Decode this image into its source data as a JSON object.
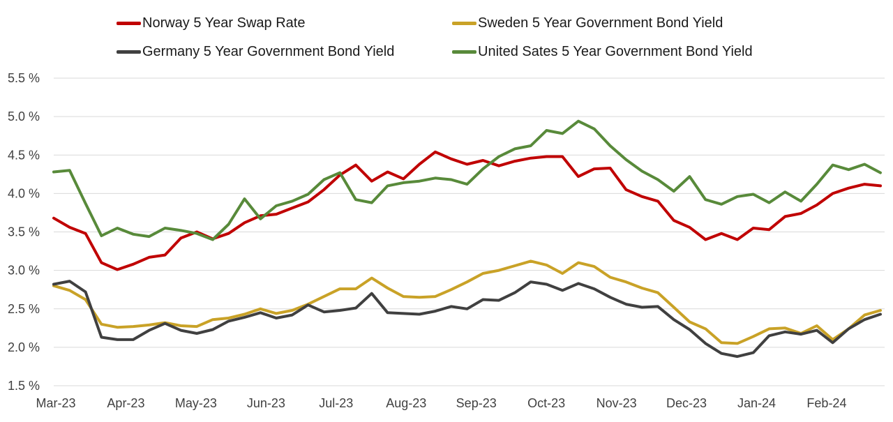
{
  "legend": {
    "items": [
      {
        "label": "Norway 5 Year Swap Rate",
        "color": "#C00000",
        "row": 0,
        "col": 0
      },
      {
        "label": "Sweden 5 Year Government Bond Yield",
        "color": "#C9A227",
        "row": 0,
        "col": 1
      },
      {
        "label": "Germany 5 Year Government Bond Yield",
        "color": "#404040",
        "row": 1,
        "col": 0
      },
      {
        "label": "United Sates 5 Year Government Bond Yield",
        "color": "#588A3A",
        "row": 1,
        "col": 1
      }
    ]
  },
  "chart_data": {
    "type": "line",
    "title": "",
    "xlabel": "",
    "ylabel": "",
    "x_unit": "weekly samples, Mar-2023 through Feb-2024",
    "x_tick_labels": [
      "Mar-23",
      "Apr-23",
      "May-23",
      "Jun-23",
      "Jul-23",
      "Aug-23",
      "Sep-23",
      "Oct-23",
      "Nov-23",
      "Dec-23",
      "Jan-24",
      "Feb-24"
    ],
    "y_tick_labels": [
      "1.5 %",
      "2.0 %",
      "2.5 %",
      "3.0 %",
      "3.5 %",
      "4.0 %",
      "4.5 %",
      "5.0 %",
      "5.5 %"
    ],
    "ylim": [
      1.5,
      5.5
    ],
    "y_tick_step": 0.5,
    "grid": "horizontal",
    "grid_color": "#D9D9D9",
    "legend_position": "top",
    "series": [
      {
        "name": "Norway 5 Year Swap Rate",
        "color": "#C00000",
        "values": [
          3.68,
          3.56,
          3.48,
          3.1,
          3.01,
          3.08,
          3.17,
          3.2,
          3.42,
          3.5,
          3.41,
          3.48,
          3.62,
          3.71,
          3.73,
          3.81,
          3.89,
          4.05,
          4.24,
          4.37,
          4.16,
          4.28,
          4.19,
          4.38,
          4.54,
          4.45,
          4.38,
          4.43,
          4.36,
          4.42,
          4.46,
          4.48,
          4.48,
          4.22,
          4.32,
          4.33,
          4.05,
          3.96,
          3.9,
          3.65,
          3.56,
          3.4,
          3.48,
          3.4,
          3.55,
          3.53,
          3.7,
          3.74,
          3.85,
          4.0,
          4.07,
          4.12,
          4.1
        ]
      },
      {
        "name": "Sweden 5 Year Government Bond Yield",
        "color": "#C9A227",
        "values": [
          2.8,
          2.74,
          2.62,
          2.3,
          2.26,
          2.27,
          2.29,
          2.32,
          2.28,
          2.27,
          2.36,
          2.38,
          2.43,
          2.5,
          2.44,
          2.48,
          2.56,
          2.66,
          2.76,
          2.76,
          2.9,
          2.77,
          2.66,
          2.65,
          2.66,
          2.75,
          2.85,
          2.96,
          3.0,
          3.06,
          3.12,
          3.07,
          2.96,
          3.1,
          3.05,
          2.91,
          2.85,
          2.77,
          2.71,
          2.52,
          2.33,
          2.24,
          2.06,
          2.05,
          2.14,
          2.24,
          2.25,
          2.18,
          2.28,
          2.1,
          2.24,
          2.42,
          2.48
        ]
      },
      {
        "name": "Germany 5 Year Government Bond Yield",
        "color": "#404040",
        "values": [
          2.82,
          2.86,
          2.72,
          2.13,
          2.1,
          2.1,
          2.22,
          2.31,
          2.22,
          2.18,
          2.23,
          2.34,
          2.39,
          2.45,
          2.38,
          2.42,
          2.55,
          2.46,
          2.48,
          2.51,
          2.7,
          2.45,
          2.44,
          2.43,
          2.47,
          2.53,
          2.5,
          2.62,
          2.61,
          2.71,
          2.85,
          2.82,
          2.74,
          2.83,
          2.76,
          2.65,
          2.56,
          2.52,
          2.53,
          2.36,
          2.23,
          2.05,
          1.92,
          1.88,
          1.93,
          2.15,
          2.2,
          2.17,
          2.22,
          2.06,
          2.24,
          2.36,
          2.43
        ]
      },
      {
        "name": "United Sates 5 Year Government Bond Yield",
        "color": "#588A3A",
        "values": [
          4.28,
          4.3,
          3.87,
          3.45,
          3.55,
          3.47,
          3.44,
          3.55,
          3.52,
          3.48,
          3.4,
          3.6,
          3.93,
          3.67,
          3.84,
          3.9,
          3.99,
          4.18,
          4.27,
          3.92,
          3.88,
          4.1,
          4.14,
          4.16,
          4.2,
          4.18,
          4.12,
          4.32,
          4.48,
          4.58,
          4.62,
          4.82,
          4.78,
          4.94,
          4.84,
          4.62,
          4.44,
          4.29,
          4.18,
          4.03,
          4.22,
          3.92,
          3.86,
          3.96,
          3.99,
          3.88,
          4.02,
          3.9,
          4.12,
          4.37,
          4.31,
          4.38,
          4.27
        ]
      }
    ]
  }
}
